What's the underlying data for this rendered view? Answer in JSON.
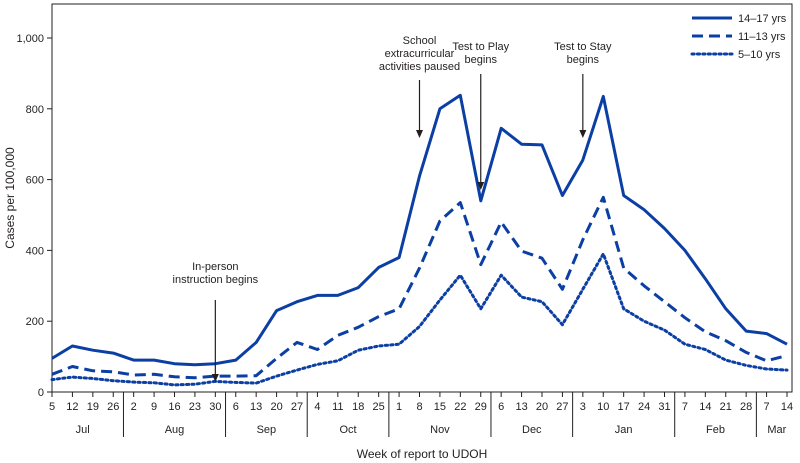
{
  "chart_data": {
    "type": "line",
    "xlabel": "Week of report to UDOH",
    "ylabel": "Cases per 100,000",
    "ylim": [
      0,
      1000
    ],
    "yticks": [
      0,
      200,
      400,
      600,
      800,
      1000
    ],
    "ytick_labels": [
      "0",
      "200",
      "400",
      "600",
      "800",
      "1,000"
    ],
    "x": [
      "5",
      "12",
      "19",
      "26",
      "2",
      "9",
      "16",
      "23",
      "30",
      "6",
      "13",
      "20",
      "27",
      "4",
      "11",
      "18",
      "25",
      "1",
      "8",
      "15",
      "22",
      "29",
      "6",
      "13",
      "20",
      "27",
      "3",
      "10",
      "17",
      "24",
      "31",
      "7",
      "14",
      "21",
      "28",
      "7",
      "14"
    ],
    "months": [
      {
        "label": "Jul",
        "start": 0,
        "end": 3
      },
      {
        "label": "Aug",
        "start": 4,
        "end": 8
      },
      {
        "label": "Sep",
        "start": 9,
        "end": 12
      },
      {
        "label": "Oct",
        "start": 13,
        "end": 16
      },
      {
        "label": "Nov",
        "start": 17,
        "end": 21
      },
      {
        "label": "Dec",
        "start": 22,
        "end": 25
      },
      {
        "label": "Jan",
        "start": 26,
        "end": 30
      },
      {
        "label": "Feb",
        "start": 31,
        "end": 34
      },
      {
        "label": "Mar",
        "start": 35,
        "end": 36
      }
    ],
    "series": [
      {
        "name": "14–17 yrs",
        "style": "solid",
        "values": [
          95,
          130,
          118,
          110,
          90,
          90,
          80,
          77,
          80,
          90,
          140,
          230,
          255,
          273,
          273,
          295,
          352,
          380,
          610,
          800,
          838,
          540,
          745,
          700,
          698,
          555,
          655,
          835,
          555,
          515,
          462,
          400,
          320,
          235,
          172,
          165,
          135
        ]
      },
      {
        "name": "11–13 yrs",
        "style": "dashed",
        "values": [
          50,
          72,
          60,
          57,
          48,
          50,
          43,
          40,
          45,
          45,
          46,
          95,
          140,
          120,
          160,
          183,
          213,
          235,
          350,
          483,
          535,
          360,
          480,
          398,
          378,
          290,
          430,
          550,
          350,
          300,
          255,
          210,
          170,
          145,
          112,
          88,
          103
        ]
      },
      {
        "name": "5–10 yrs",
        "style": "dotted",
        "values": [
          35,
          42,
          38,
          32,
          28,
          26,
          20,
          22,
          30,
          27,
          25,
          45,
          62,
          78,
          88,
          118,
          130,
          135,
          185,
          260,
          330,
          235,
          330,
          268,
          255,
          190,
          290,
          390,
          235,
          200,
          175,
          135,
          120,
          90,
          75,
          65,
          62
        ]
      }
    ],
    "annotations": [
      {
        "lines": [
          "In-person",
          "instruction begins"
        ],
        "index": 8
      },
      {
        "lines": [
          "School",
          "extracurricular",
          "activities paused"
        ],
        "index": 18
      },
      {
        "lines": [
          "Test to Play",
          "begins"
        ],
        "index": 21
      },
      {
        "lines": [
          "Test to Stay",
          "begins"
        ],
        "index": 26
      }
    ],
    "legend_position": "top-right",
    "grid": false,
    "color": "#0b3fa4"
  }
}
